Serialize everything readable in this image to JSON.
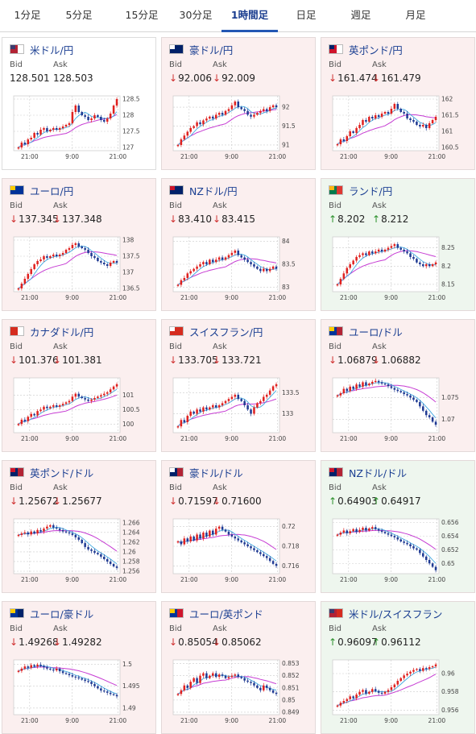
{
  "tabs": [
    {
      "label": "1分足",
      "active": false
    },
    {
      "label": "5分足",
      "active": false
    },
    {
      "label": "15分足",
      "active": false
    },
    {
      "label": "30分足",
      "active": false
    },
    {
      "label": "1時間足",
      "active": true
    },
    {
      "label": "日足",
      "active": false
    },
    {
      "label": "週足",
      "active": false
    },
    {
      "label": "月足",
      "active": false
    }
  ],
  "labels": {
    "bid": "Bid",
    "ask": "Ask"
  },
  "arrows": {
    "down": "↓",
    "up": "↑"
  },
  "colors": {
    "down_bg": "#fbefef",
    "up_bg": "#eef6ee",
    "candle_up": "#e0211f",
    "candle_down": "#1f3a93",
    "ma_short": "#3fa8e0",
    "ma_long": "#c63bd3"
  },
  "cards": [
    {
      "pair": "米ドル/円",
      "flag": "us",
      "trend": "neutral",
      "bid": "128.501",
      "ask": "128.503",
      "chart_data": {
        "type": "candlestick",
        "ylim": [
          126.9,
          128.6
        ],
        "yticks": [
          "128.5",
          "128",
          "127.5",
          "127"
        ],
        "ytick_values": [
          128.5,
          128,
          127.5,
          127
        ],
        "xticks": [
          "21:00",
          "9:00",
          "21:00"
        ],
        "closes": [
          127.0,
          127.15,
          127.1,
          127.25,
          127.3,
          127.45,
          127.4,
          127.55,
          127.6,
          127.5,
          127.55,
          127.6,
          127.55,
          127.6,
          127.65,
          127.7,
          127.75,
          128.1,
          128.3,
          128.1,
          128.0,
          127.95,
          127.85,
          127.9,
          128.0,
          127.95,
          127.85,
          127.8,
          127.9,
          128.05,
          128.3,
          128.5
        ]
      }
    },
    {
      "pair": "豪ドル/円",
      "flag": "au",
      "trend": "down",
      "bid": "92.006",
      "ask": "92.009",
      "chart_data": {
        "type": "candlestick",
        "ylim": [
          90.85,
          92.3
        ],
        "yticks": [
          "92",
          "91.5",
          "91"
        ],
        "ytick_values": [
          92,
          91.5,
          91
        ],
        "xticks": [
          "21:00",
          "9:00",
          "21:00"
        ],
        "closes": [
          91.0,
          91.15,
          91.25,
          91.35,
          91.45,
          91.5,
          91.6,
          91.55,
          91.65,
          91.7,
          91.75,
          91.7,
          91.8,
          91.85,
          91.8,
          91.9,
          91.95,
          92.05,
          92.15,
          92.0,
          91.95,
          91.9,
          91.8,
          91.75,
          91.8,
          91.85,
          91.9,
          91.95,
          91.9,
          92.0,
          92.05,
          92.0
        ]
      }
    },
    {
      "pair": "英ポンド/円",
      "flag": "uk",
      "trend": "down",
      "bid": "161.474",
      "ask": "161.479",
      "chart_data": {
        "type": "candlestick",
        "ylim": [
          160.4,
          162.1
        ],
        "yticks": [
          "162",
          "161.5",
          "161",
          "160.5"
        ],
        "ytick_values": [
          162,
          161.5,
          161,
          160.5
        ],
        "xticks": [
          "21:00",
          "9:00",
          "21:00"
        ],
        "closes": [
          160.6,
          160.75,
          160.7,
          160.85,
          161.0,
          160.95,
          161.1,
          161.2,
          161.35,
          161.3,
          161.45,
          161.4,
          161.5,
          161.45,
          161.55,
          161.6,
          161.55,
          161.7,
          161.85,
          161.7,
          161.6,
          161.55,
          161.4,
          161.35,
          161.3,
          161.2,
          161.15,
          161.2,
          161.1,
          161.25,
          161.35,
          161.45
        ]
      }
    },
    {
      "pair": "ユーロ/円",
      "flag": "eu",
      "trend": "down",
      "bid": "137.345",
      "ask": "137.348",
      "chart_data": {
        "type": "candlestick",
        "ylim": [
          136.4,
          138.1
        ],
        "yticks": [
          "138",
          "137.5",
          "137",
          "136.5"
        ],
        "ytick_values": [
          138,
          137.5,
          137,
          136.5
        ],
        "xticks": [
          "21:00",
          "9:00",
          "21:00"
        ],
        "closes": [
          136.5,
          136.65,
          136.8,
          136.95,
          137.1,
          137.25,
          137.35,
          137.4,
          137.5,
          137.45,
          137.5,
          137.55,
          137.5,
          137.55,
          137.6,
          137.7,
          137.75,
          137.85,
          137.9,
          137.8,
          137.75,
          137.7,
          137.6,
          137.5,
          137.45,
          137.35,
          137.3,
          137.25,
          137.2,
          137.3,
          137.35,
          137.3
        ]
      }
    },
    {
      "pair": "NZドル/円",
      "flag": "nz",
      "trend": "down",
      "bid": "83.410",
      "ask": "83.415",
      "chart_data": {
        "type": "candlestick",
        "ylim": [
          82.9,
          84.1
        ],
        "yticks": [
          "84",
          "83.5",
          "83"
        ],
        "ytick_values": [
          84,
          83.5,
          83
        ],
        "xticks": [
          "21:00",
          "9:00",
          "21:00"
        ],
        "closes": [
          83.05,
          83.15,
          83.2,
          83.3,
          83.35,
          83.4,
          83.45,
          83.5,
          83.55,
          83.5,
          83.6,
          83.55,
          83.6,
          83.65,
          83.6,
          83.65,
          83.7,
          83.75,
          83.8,
          83.7,
          83.65,
          83.6,
          83.55,
          83.5,
          83.45,
          83.4,
          83.35,
          83.4,
          83.35,
          83.4,
          83.45,
          83.4
        ]
      }
    },
    {
      "pair": "ランド/円",
      "flag": "za",
      "trend": "up",
      "bid": "8.202",
      "ask": "8.212",
      "chart_data": {
        "type": "candlestick",
        "ylim": [
          8.13,
          8.28
        ],
        "yticks": [
          "8.25",
          "8.2",
          "8.15"
        ],
        "ytick_values": [
          8.25,
          8.2,
          8.15
        ],
        "xticks": [
          "21:00",
          "9:00",
          "21:00"
        ],
        "closes": [
          8.15,
          8.165,
          8.18,
          8.195,
          8.205,
          8.215,
          8.225,
          8.23,
          8.235,
          8.23,
          8.24,
          8.235,
          8.24,
          8.245,
          8.24,
          8.245,
          8.25,
          8.255,
          8.26,
          8.25,
          8.245,
          8.24,
          8.235,
          8.225,
          8.22,
          8.21,
          8.205,
          8.2,
          8.205,
          8.2,
          8.205,
          8.21
        ]
      }
    },
    {
      "pair": "カナダドル/円",
      "flag": "ca",
      "trend": "down",
      "bid": "101.376",
      "ask": "101.381",
      "chart_data": {
        "type": "candlestick",
        "ylim": [
          99.7,
          101.6
        ],
        "yticks": [
          "101",
          "100.5",
          "100"
        ],
        "ytick_values": [
          101,
          100.5,
          100
        ],
        "xticks": [
          "21:00",
          "9:00",
          "21:00"
        ],
        "closes": [
          100.0,
          100.15,
          100.1,
          100.25,
          100.35,
          100.3,
          100.45,
          100.5,
          100.6,
          100.55,
          100.6,
          100.65,
          100.6,
          100.65,
          100.7,
          100.75,
          100.8,
          100.95,
          101.05,
          100.95,
          100.9,
          100.85,
          100.8,
          100.85,
          100.9,
          100.95,
          101.0,
          101.05,
          101.1,
          101.2,
          101.3,
          101.38
        ]
      }
    },
    {
      "pair": "スイスフラン/円",
      "flag": "ch",
      "trend": "down",
      "bid": "133.705",
      "ask": "133.721",
      "chart_data": {
        "type": "candlestick",
        "ylim": [
          132.55,
          133.85
        ],
        "yticks": [
          "133.5",
          "133"
        ],
        "ytick_values": [
          133.5,
          133
        ],
        "xticks": [
          "21:00",
          "9:00",
          "21:00"
        ],
        "closes": [
          132.7,
          132.85,
          132.8,
          132.95,
          133.05,
          133.0,
          133.1,
          133.05,
          133.15,
          133.1,
          133.15,
          133.2,
          133.15,
          133.2,
          133.25,
          133.3,
          133.35,
          133.4,
          133.45,
          133.35,
          133.3,
          133.2,
          133.1,
          133.0,
          133.15,
          133.25,
          133.3,
          133.4,
          133.45,
          133.55,
          133.65,
          133.7
        ]
      }
    },
    {
      "pair": "ユーロ/ドル",
      "flag": "euus",
      "trend": "down",
      "bid": "1.06879",
      "ask": "1.06882",
      "chart_data": {
        "type": "candlestick",
        "ylim": [
          1.067,
          1.0795
        ],
        "yticks": [
          "1.075",
          "1.07"
        ],
        "ytick_values": [
          1.075,
          1.07
        ],
        "xticks": [
          "21:00",
          "9:00",
          "21:00"
        ],
        "closes": [
          1.0755,
          1.076,
          1.077,
          1.0765,
          1.0775,
          1.077,
          1.078,
          1.0775,
          1.0785,
          1.0778,
          1.0782,
          1.0786,
          1.0788,
          1.0785,
          1.0782,
          1.078,
          1.0776,
          1.0772,
          1.0768,
          1.0765,
          1.0762,
          1.0758,
          1.0755,
          1.075,
          1.0745,
          1.074,
          1.073,
          1.072,
          1.071,
          1.0705,
          1.0695,
          1.0688
        ]
      }
    },
    {
      "pair": "英ポンド/ドル",
      "flag": "ukus",
      "trend": "down",
      "bid": "1.25672",
      "ask": "1.25677",
      "chart_data": {
        "type": "candlestick",
        "ylim": [
          1.2555,
          1.2668
        ],
        "yticks": [
          "1.266",
          "1.264",
          "1.262",
          "1.26",
          "1.258",
          "1.256"
        ],
        "ytick_values": [
          1.266,
          1.264,
          1.262,
          1.26,
          1.258,
          1.256
        ],
        "xticks": [
          "21:00",
          "9:00",
          "21:00"
        ],
        "closes": [
          1.2635,
          1.2638,
          1.264,
          1.2636,
          1.2642,
          1.2638,
          1.2645,
          1.2642,
          1.2648,
          1.2652,
          1.2655,
          1.265,
          1.2648,
          1.2645,
          1.2642,
          1.264,
          1.2638,
          1.2635,
          1.263,
          1.2625,
          1.2618,
          1.261,
          1.2605,
          1.2602,
          1.2598,
          1.2595,
          1.259,
          1.2585,
          1.258,
          1.2575,
          1.257,
          1.2567
        ]
      }
    },
    {
      "pair": "豪ドル/ドル",
      "flag": "auus",
      "trend": "down",
      "bid": "0.71597",
      "ask": "0.71600",
      "chart_data": {
        "type": "candlestick",
        "ylim": [
          0.7152,
          0.7208
        ],
        "yticks": [
          "0.72",
          "0.718",
          "0.716"
        ],
        "ytick_values": [
          0.72,
          0.718,
          0.716
        ],
        "xticks": [
          "21:00",
          "9:00",
          "21:00"
        ],
        "closes": [
          0.7185,
          0.7182,
          0.7188,
          0.7185,
          0.719,
          0.7186,
          0.7192,
          0.7188,
          0.7194,
          0.719,
          0.7196,
          0.7192,
          0.7198,
          0.72,
          0.7197,
          0.7195,
          0.7192,
          0.719,
          0.7188,
          0.7186,
          0.7184,
          0.7182,
          0.718,
          0.7178,
          0.7176,
          0.7174,
          0.7172,
          0.717,
          0.7168,
          0.7165,
          0.7162,
          0.716
        ]
      }
    },
    {
      "pair": "NZドル/ドル",
      "flag": "nzus",
      "trend": "up",
      "bid": "0.64903",
      "ask": "0.64917",
      "chart_data": {
        "type": "candlestick",
        "ylim": [
          0.6485,
          0.6565
        ],
        "yticks": [
          "0.656",
          "0.654",
          "0.652",
          "0.65"
        ],
        "ytick_values": [
          0.656,
          0.654,
          0.652,
          0.65
        ],
        "xticks": [
          "21:00",
          "9:00",
          "21:00"
        ],
        "closes": [
          0.6542,
          0.6545,
          0.6548,
          0.6544,
          0.6547,
          0.655,
          0.6546,
          0.6549,
          0.6552,
          0.6548,
          0.6551,
          0.6553,
          0.655,
          0.6548,
          0.6546,
          0.6544,
          0.6542,
          0.654,
          0.6538,
          0.6535,
          0.6532,
          0.653,
          0.6528,
          0.6525,
          0.6522,
          0.652,
          0.6515,
          0.651,
          0.6505,
          0.65,
          0.6495,
          0.649
        ]
      }
    },
    {
      "pair": "ユーロ/豪ドル",
      "flag": "euau",
      "trend": "down",
      "bid": "1.49268",
      "ask": "1.49282",
      "chart_data": {
        "type": "candlestick",
        "ylim": [
          1.4885,
          1.501
        ],
        "yticks": [
          "1.5",
          "1.495",
          "1.49"
        ],
        "ytick_values": [
          1.5,
          1.495,
          1.49
        ],
        "xticks": [
          "21:00",
          "9:00",
          "21:00"
        ],
        "closes": [
          1.4985,
          1.499,
          1.4995,
          1.4992,
          1.4998,
          1.4995,
          1.4999,
          1.4996,
          1.4993,
          1.499,
          1.4988,
          1.4986,
          1.499,
          1.4984,
          1.498,
          1.4978,
          1.4975,
          1.4972,
          1.497,
          1.4968,
          1.4965,
          1.4962,
          1.496,
          1.4955,
          1.495,
          1.4945,
          1.494,
          1.4938,
          1.4935,
          1.4932,
          1.493,
          1.4927
        ]
      }
    },
    {
      "pair": "ユーロ/英ポンド",
      "flag": "euuk",
      "trend": "down",
      "bid": "0.85054",
      "ask": "0.85062",
      "chart_data": {
        "type": "candlestick",
        "ylim": [
          0.8488,
          0.8533
        ],
        "yticks": [
          "0.853",
          "0.852",
          "0.851",
          "0.85",
          "0.849"
        ],
        "ytick_values": [
          0.853,
          0.852,
          0.851,
          0.85,
          0.849
        ],
        "xticks": [
          "21:00",
          "9:00",
          "21:00"
        ],
        "closes": [
          0.8505,
          0.8508,
          0.8512,
          0.851,
          0.8515,
          0.8518,
          0.8514,
          0.852,
          0.8522,
          0.8518,
          0.852,
          0.8522,
          0.8519,
          0.8521,
          0.852,
          0.8518,
          0.8519,
          0.852,
          0.8521,
          0.8519,
          0.8518,
          0.8516,
          0.8515,
          0.8514,
          0.8512,
          0.851,
          0.8508,
          0.8512,
          0.851,
          0.8508,
          0.8506,
          0.8505
        ]
      }
    },
    {
      "pair": "米ドル/スイスフラン",
      "flag": "usch",
      "trend": "up",
      "bid": "0.96097",
      "ask": "0.96112",
      "chart_data": {
        "type": "candlestick",
        "ylim": [
          0.9555,
          0.9615
        ],
        "yticks": [
          "0.96",
          "0.958",
          "0.956"
        ],
        "ytick_values": [
          0.96,
          0.958,
          0.956
        ],
        "xticks": [
          "21:00",
          "9:00",
          "21:00"
        ],
        "closes": [
          0.9565,
          0.9568,
          0.957,
          0.9572,
          0.9575,
          0.9573,
          0.9577,
          0.958,
          0.9582,
          0.9578,
          0.958,
          0.9583,
          0.9581,
          0.9579,
          0.9578,
          0.958,
          0.9582,
          0.9585,
          0.9588,
          0.9592,
          0.9595,
          0.9598,
          0.96,
          0.9602,
          0.9604,
          0.9605,
          0.9603,
          0.9606,
          0.9605,
          0.9607,
          0.9608,
          0.961
        ]
      }
    }
  ]
}
